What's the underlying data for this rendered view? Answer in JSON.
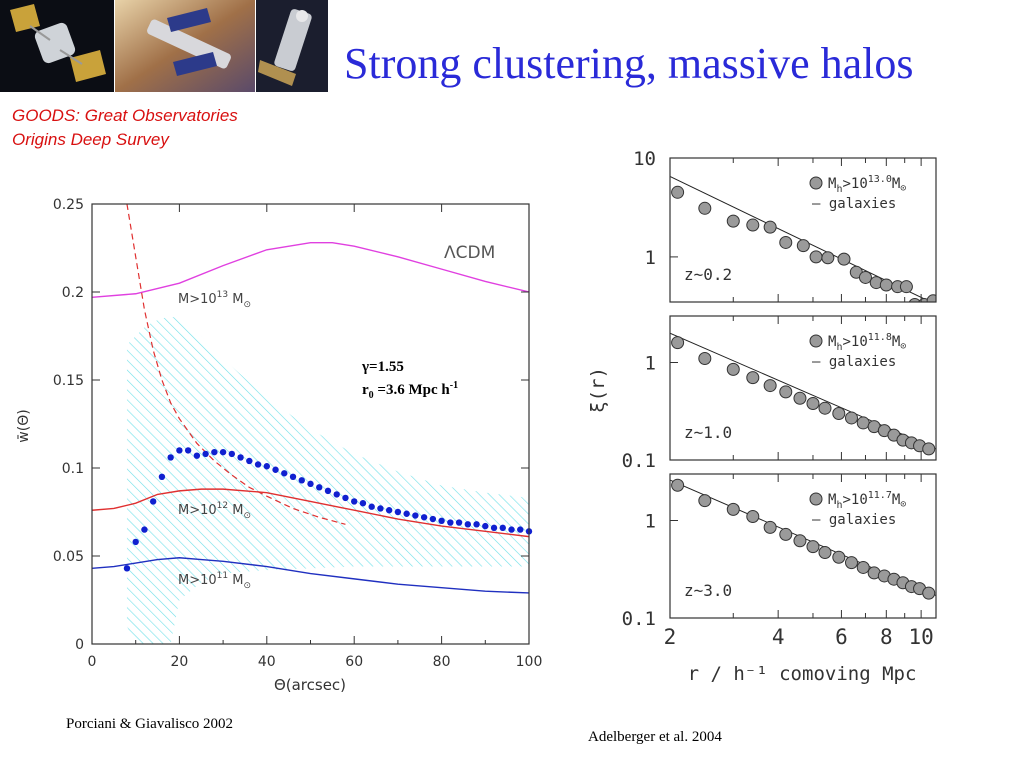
{
  "slide": {
    "title": "Strong clustering, massive halos",
    "subtitle_line1": "GOODS: Great Observatories",
    "subtitle_line2": "Origins Deep Survey",
    "credit_left": "Porciani & Giavalisco 2002",
    "credit_right": "Adelberger et al. 2004"
  },
  "images": [
    {
      "name": "satellite-image-1",
      "icon": "satellite-icon",
      "bg": "#0b0d14"
    },
    {
      "name": "satellite-image-2",
      "icon": "satellite-icon",
      "bg": "#b28a63"
    },
    {
      "name": "telescope-image-3",
      "icon": "telescope-icon",
      "bg": "#1b1e2e"
    }
  ],
  "chart_data": [
    {
      "type": "line",
      "name": "left-plot",
      "xlabel": "Θ(arcsec)",
      "ylabel": "w̄(Θ)",
      "xlim": [
        0,
        100
      ],
      "ylim": [
        0,
        0.25
      ],
      "xticks": [
        "0",
        "20",
        "40",
        "60",
        "80",
        "100"
      ],
      "yticks": [
        "0",
        "0.05",
        "0.1",
        "0.15",
        "0.2",
        "0.25"
      ],
      "annotations": {
        "lcdm": "ΛCDM",
        "m13": "M>10",
        "m13_exp": "13",
        "m12": "M>10",
        "m12_exp": "12",
        "m11": "M>10",
        "m11_exp": "11",
        "msun": "M",
        "gamma": "γ=1.55",
        "r0": "r",
        "r0_sub": "0",
        "r0_val": " =3.6 Mpc h",
        "r0_exp": "-1"
      },
      "series": [
        {
          "name": "ΛCDM",
          "color": "#e040e0",
          "x": [
            0,
            10,
            20,
            30,
            40,
            50,
            55,
            60,
            70,
            80,
            90,
            100
          ],
          "y": [
            0.197,
            0.199,
            0.205,
            0.215,
            0.224,
            0.228,
            0.228,
            0.226,
            0.22,
            0.213,
            0.206,
            0.2
          ]
        },
        {
          "name": "M>10^12",
          "color": "#e03030",
          "x": [
            0,
            5,
            10,
            15,
            20,
            25,
            30,
            40,
            50,
            60,
            70,
            80,
            90,
            100
          ],
          "y": [
            0.076,
            0.077,
            0.08,
            0.085,
            0.087,
            0.088,
            0.088,
            0.086,
            0.081,
            0.076,
            0.071,
            0.067,
            0.064,
            0.061
          ]
        },
        {
          "name": "M>10^11",
          "color": "#2030c0",
          "x": [
            0,
            5,
            10,
            15,
            20,
            25,
            30,
            40,
            50,
            60,
            70,
            80,
            90,
            100
          ],
          "y": [
            0.043,
            0.044,
            0.046,
            0.048,
            0.049,
            0.048,
            0.047,
            0.044,
            0.04,
            0.037,
            0.034,
            0.032,
            0.03,
            0.029
          ]
        },
        {
          "name": "power-law",
          "color": "#e03030",
          "dashed": true,
          "x": [
            8,
            10,
            12,
            14,
            16,
            18,
            20,
            24,
            28,
            32,
            36,
            40,
            46,
            52,
            58
          ],
          "y": [
            0.25,
            0.22,
            0.19,
            0.167,
            0.15,
            0.137,
            0.128,
            0.114,
            0.104,
            0.096,
            0.089,
            0.084,
            0.077,
            0.072,
            0.068
          ]
        }
      ],
      "points": {
        "color": "#1020d0",
        "x": [
          8,
          10,
          12,
          14,
          16,
          18,
          20,
          22,
          24,
          26,
          28,
          30,
          32,
          34,
          36,
          38,
          40,
          42,
          44,
          46,
          48,
          50,
          52,
          54,
          56,
          58,
          60,
          62,
          64,
          66,
          68,
          70,
          72,
          74,
          76,
          78,
          80,
          82,
          84,
          86,
          88,
          90,
          92,
          94,
          96,
          98,
          100
        ],
        "y": [
          0.043,
          0.058,
          0.065,
          0.081,
          0.095,
          0.106,
          0.11,
          0.11,
          0.107,
          0.108,
          0.109,
          0.109,
          0.108,
          0.106,
          0.104,
          0.102,
          0.101,
          0.099,
          0.097,
          0.095,
          0.093,
          0.091,
          0.089,
          0.087,
          0.085,
          0.083,
          0.081,
          0.08,
          0.078,
          0.077,
          0.076,
          0.075,
          0.074,
          0.073,
          0.072,
          0.071,
          0.07,
          0.069,
          0.069,
          0.068,
          0.068,
          0.067,
          0.066,
          0.066,
          0.065,
          0.065,
          0.064
        ]
      },
      "band": {
        "x": [
          8,
          10,
          12,
          14,
          16,
          18,
          20,
          25,
          30,
          40,
          50,
          60,
          70,
          80,
          90,
          100
        ],
        "upper": [
          0.17,
          0.175,
          0.18,
          0.183,
          0.185,
          0.186,
          0.185,
          0.175,
          0.162,
          0.14,
          0.122,
          0.108,
          0.098,
          0.09,
          0.086,
          0.083
        ],
        "lower": [
          0.01,
          0.0,
          0.0,
          0.0,
          0.0,
          0.0,
          0.025,
          0.035,
          0.04,
          0.042,
          0.043,
          0.044,
          0.044,
          0.044,
          0.044,
          0.044
        ]
      }
    },
    {
      "type": "scatter",
      "name": "right-plots",
      "xscale": "log",
      "yscale": "log",
      "xlim": [
        2,
        11
      ],
      "xlabel": "r / h⁻¹ comoving Mpc",
      "ylabel": "ξ(r)",
      "xticks": [
        "2",
        "4",
        "6",
        "8",
        "10"
      ],
      "legend_label": "M",
      "legend_sub": "h",
      "legend_gt": ">10",
      "legend_line": "— galaxies",
      "panels": [
        {
          "redshift": "z~0.2",
          "exp": "13.0",
          "ylim": [
            0.35,
            10
          ],
          "yticks": [
            "10",
            "1"
          ],
          "line": {
            "x": [
              2,
              11
            ],
            "y": [
              6.5,
              0.33
            ]
          },
          "x": [
            2.1,
            2.5,
            3.0,
            3.4,
            3.8,
            4.2,
            4.7,
            5.1,
            5.5,
            6.1,
            6.6,
            7.0,
            7.5,
            8.0,
            8.6,
            9.1,
            9.6,
            10.2,
            10.8
          ],
          "y": [
            4.5,
            3.1,
            2.3,
            2.1,
            2.0,
            1.4,
            1.3,
            1.0,
            0.98,
            0.95,
            0.7,
            0.62,
            0.55,
            0.52,
            0.5,
            0.5,
            0.33,
            0.33,
            0.36
          ]
        },
        {
          "redshift": "z~1.0",
          "exp": "11.8",
          "ylim": [
            0.1,
            3
          ],
          "yticks": [
            "1",
            "0.1"
          ],
          "line": {
            "x": [
              2,
              11
            ],
            "y": [
              2.0,
              0.13
            ]
          },
          "x": [
            2.1,
            2.5,
            3.0,
            3.4,
            3.8,
            4.2,
            4.6,
            5.0,
            5.4,
            5.9,
            6.4,
            6.9,
            7.4,
            7.9,
            8.4,
            8.9,
            9.4,
            9.9,
            10.5
          ],
          "y": [
            1.6,
            1.1,
            0.85,
            0.7,
            0.58,
            0.5,
            0.43,
            0.38,
            0.34,
            0.3,
            0.27,
            0.24,
            0.22,
            0.2,
            0.18,
            0.16,
            0.15,
            0.14,
            0.13
          ]
        },
        {
          "redshift": "z~3.0",
          "exp": "11.7",
          "ylim": [
            0.1,
            3
          ],
          "yticks": [
            "1",
            "0.1"
          ],
          "line": {
            "x": [
              2,
              11
            ],
            "y": [
              2.6,
              0.17
            ]
          },
          "x": [
            2.1,
            2.5,
            3.0,
            3.4,
            3.8,
            4.2,
            4.6,
            5.0,
            5.4,
            5.9,
            6.4,
            6.9,
            7.4,
            7.9,
            8.4,
            8.9,
            9.4,
            9.9,
            10.5
          ],
          "y": [
            2.3,
            1.6,
            1.3,
            1.1,
            0.85,
            0.72,
            0.62,
            0.54,
            0.47,
            0.42,
            0.37,
            0.33,
            0.29,
            0.27,
            0.25,
            0.23,
            0.21,
            0.2,
            0.18
          ]
        }
      ]
    }
  ]
}
